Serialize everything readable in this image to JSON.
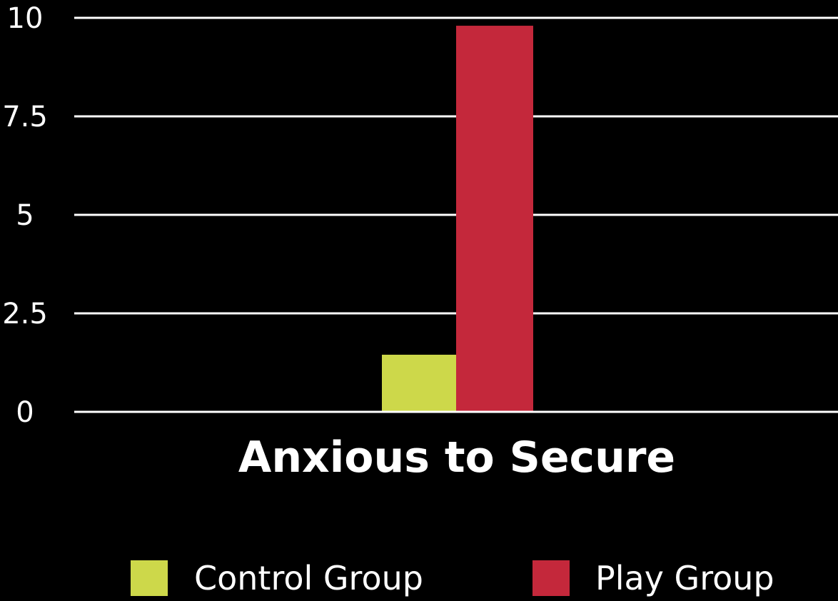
{
  "chart_data": {
    "type": "bar",
    "title": "",
    "xlabel": "",
    "ylabel": "",
    "categories": [
      "Anxious to Secure"
    ],
    "series": [
      {
        "name": "Control Group",
        "values": [
          1.45
        ],
        "color": "#cdd84a"
      },
      {
        "name": "Play Group",
        "values": [
          9.8
        ],
        "color": "#c4283b"
      }
    ],
    "ylim": [
      0,
      10
    ],
    "yticks": [
      "0",
      "2.5",
      "5",
      "7.5",
      "10"
    ],
    "ytick_values": [
      0,
      2.5,
      5,
      7.5,
      10
    ],
    "grid": true,
    "legend_position": "bottom",
    "background": "#000000"
  }
}
